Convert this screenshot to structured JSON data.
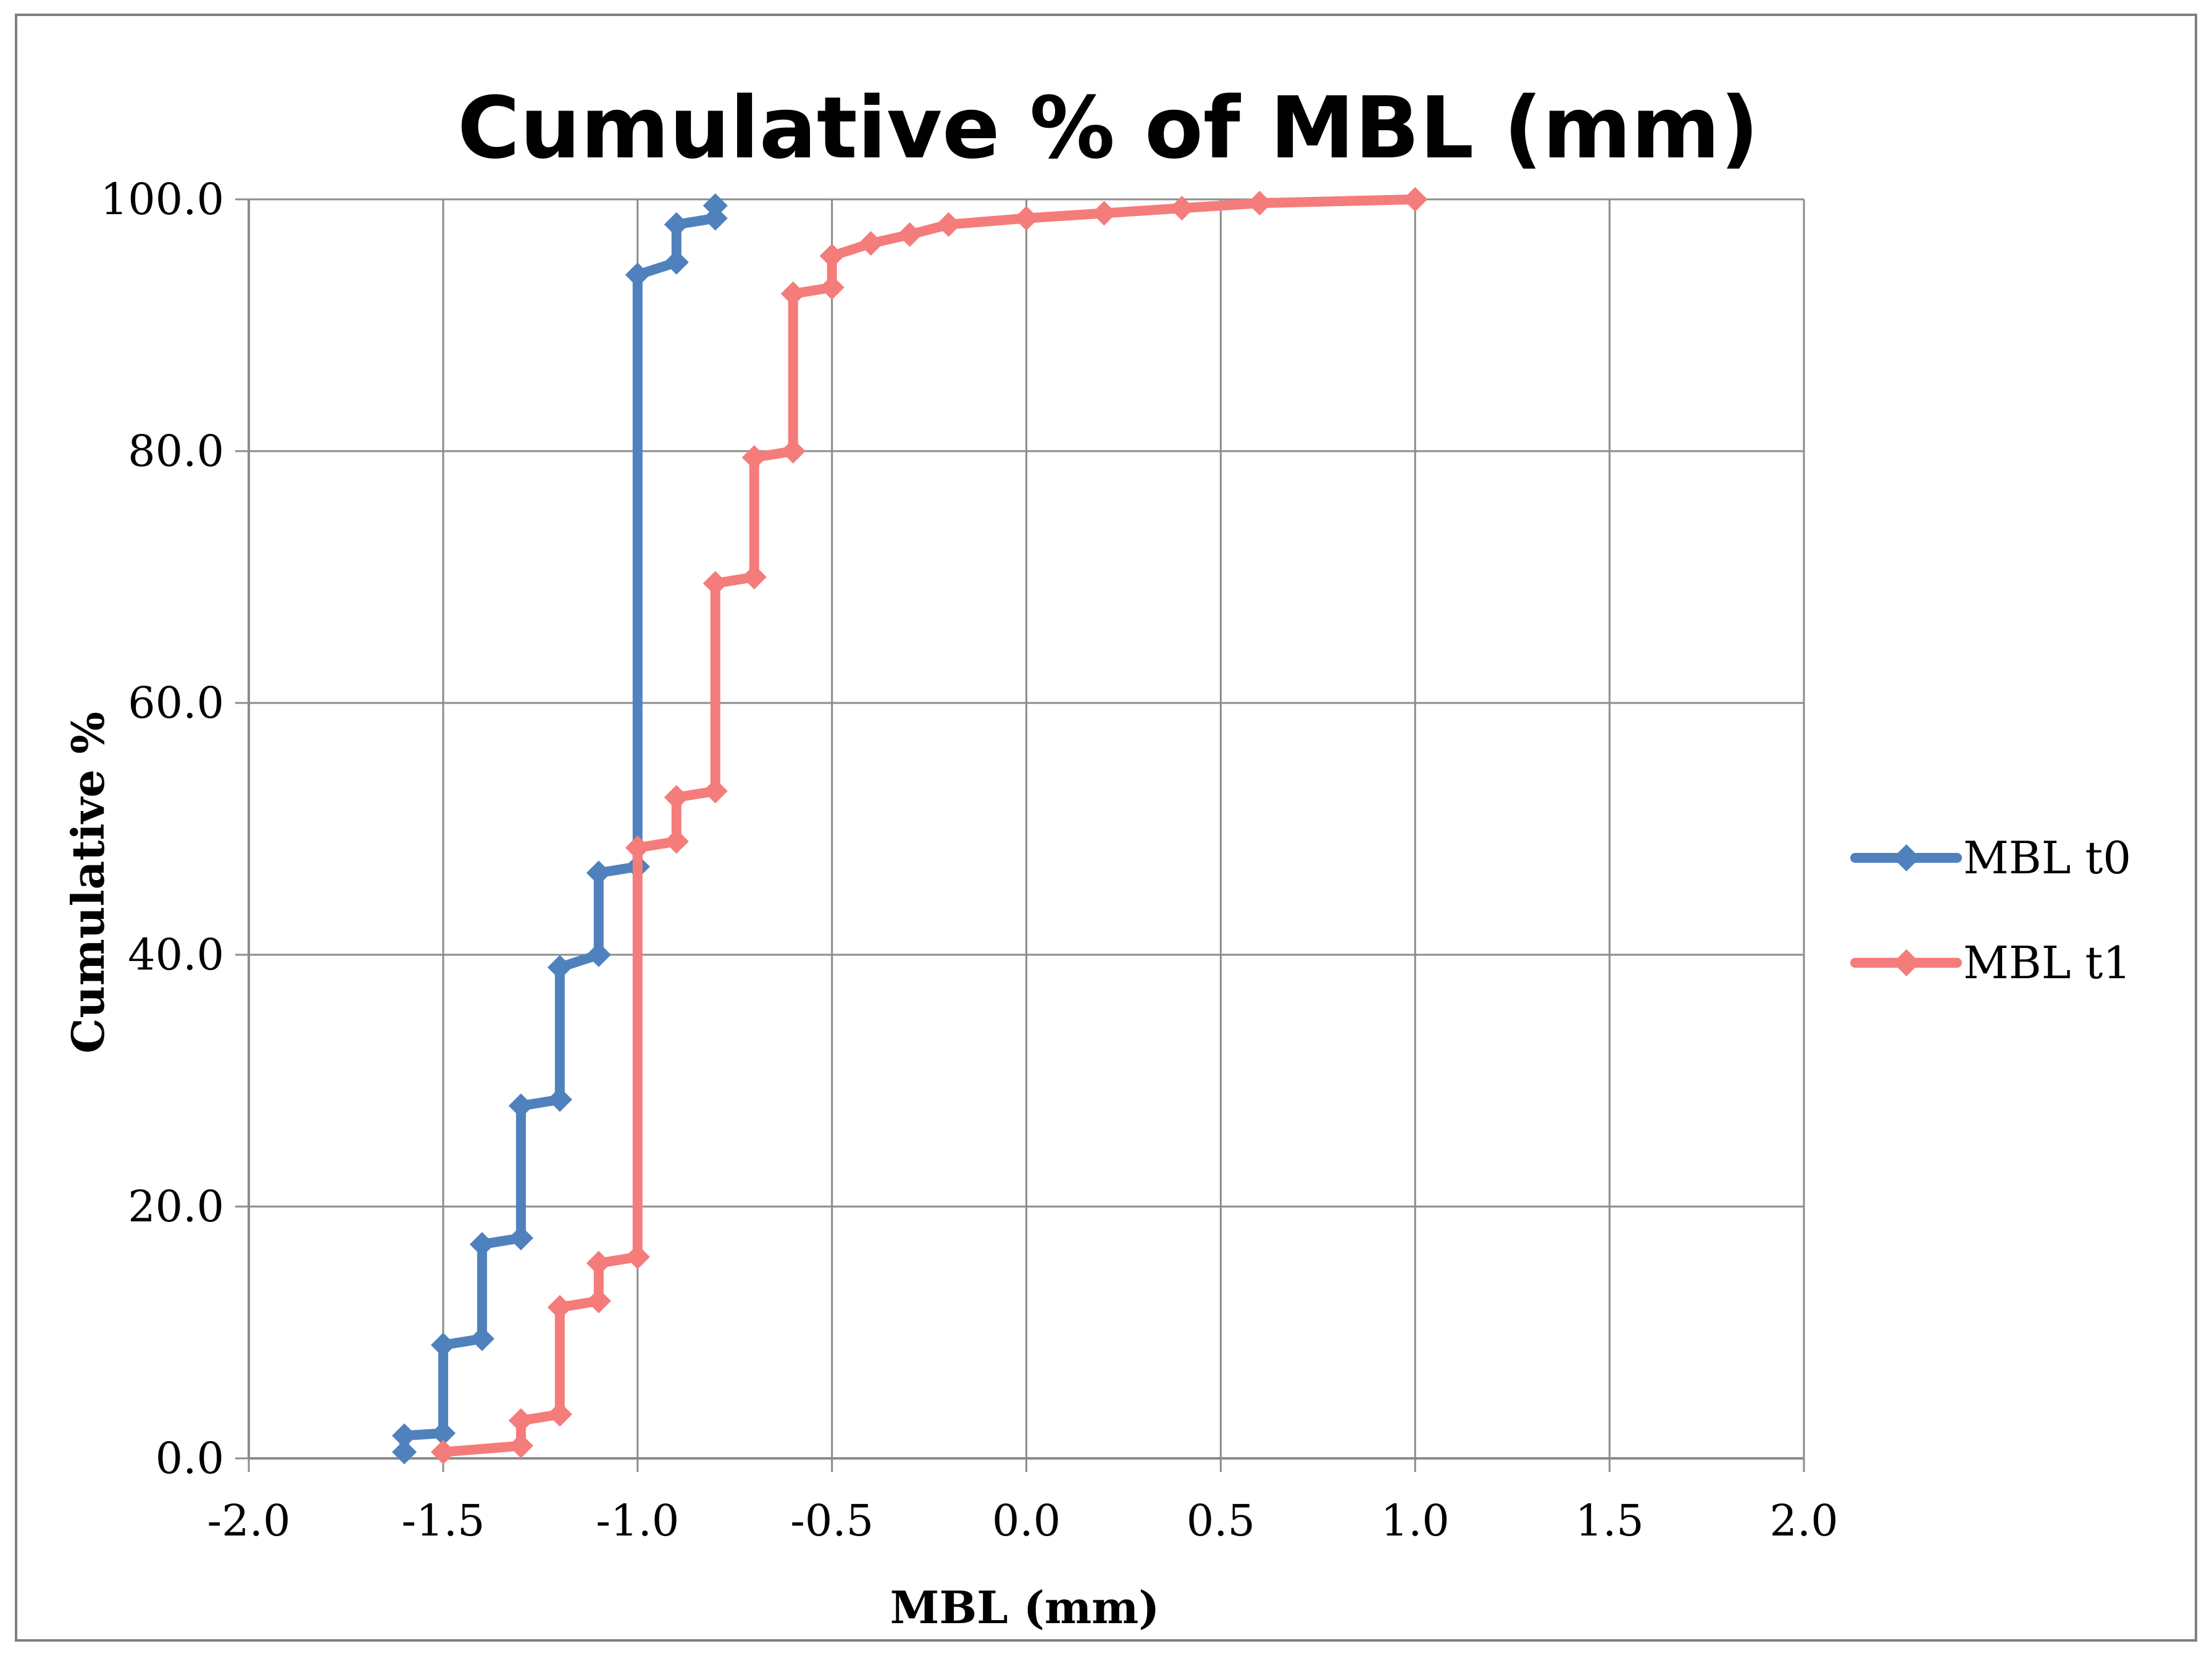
{
  "chart_data": {
    "type": "line",
    "title": "Cumulative % of MBL (mm)",
    "xlabel": "MBL (mm)",
    "ylabel": "Cumulative %",
    "xlim": [
      -2.0,
      2.0
    ],
    "ylim": [
      0,
      100
    ],
    "x_ticks": [
      "-2.0",
      "-1.5",
      "-1.0",
      "-0.5",
      "0.0",
      "0.5",
      "1.0",
      "1.5",
      "2.0"
    ],
    "y_ticks": [
      "0.0",
      "20.0",
      "40.0",
      "60.0",
      "80.0",
      "100.0"
    ],
    "grid": true,
    "legend_position": "right",
    "series": [
      {
        "name": "MBL t0",
        "color": "#4f81bd",
        "x": [
          -1.6,
          -1.6,
          -1.5,
          -1.5,
          -1.4,
          -1.4,
          -1.3,
          -1.3,
          -1.2,
          -1.2,
          -1.1,
          -1.1,
          -1.0,
          -1.0,
          -0.9,
          -0.9,
          -0.8,
          -0.8
        ],
        "y": [
          0.5,
          1.8,
          2.0,
          9.0,
          9.5,
          17.0,
          17.5,
          28.0,
          28.5,
          39.0,
          40.0,
          46.5,
          47.0,
          94.0,
          95.0,
          98.0,
          98.5,
          99.5
        ]
      },
      {
        "name": "MBL t1",
        "color": "#f47c7a",
        "x": [
          -1.5,
          -1.3,
          -1.3,
          -1.2,
          -1.2,
          -1.1,
          -1.1,
          -1.0,
          -1.0,
          -0.9,
          -0.9,
          -0.8,
          -0.8,
          -0.7,
          -0.7,
          -0.6,
          -0.6,
          -0.5,
          -0.5,
          -0.4,
          -0.3,
          -0.2,
          0.0,
          0.2,
          0.4,
          0.6,
          1.0
        ],
        "y": [
          0.5,
          1.0,
          3.0,
          3.5,
          12.0,
          12.5,
          15.5,
          16.0,
          48.5,
          49.0,
          52.5,
          53.0,
          69.5,
          70.0,
          79.5,
          80.0,
          92.5,
          93.0,
          95.5,
          96.5,
          97.2,
          98.0,
          98.5,
          98.9,
          99.3,
          99.7,
          100.0
        ]
      }
    ]
  }
}
